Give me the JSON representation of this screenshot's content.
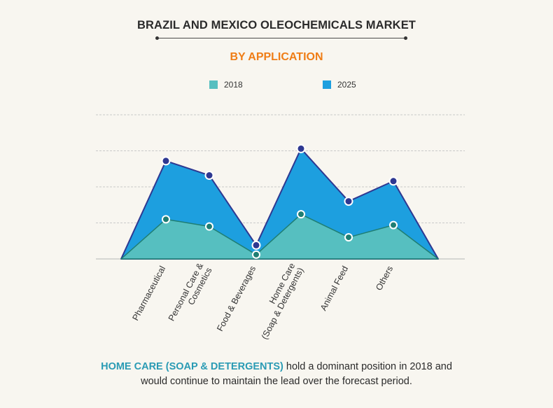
{
  "title": "BRAZIL AND MEXICO OLEOCHEMICALS MARKET",
  "subtitle": "BY APPLICATION",
  "colors": {
    "subtitle": "#ef7d16",
    "s2018_fill": "#56bfc0",
    "s2018_line": "#1f7e73",
    "s2025_fill": "#1d9fdf",
    "s2025_line": "#2e3891",
    "highlight": "#2a9bb4",
    "grid": "#c9c9c9",
    "axis_text": "#333333"
  },
  "chart_data": {
    "type": "area",
    "categories": [
      "Pharmaceutical",
      "Personal Care & Cosmetics",
      "Food & Beverages",
      "Home Care (Soap & Detergents)",
      "Animal Feed",
      "Others"
    ],
    "category_lines": [
      [
        "Pharmaceutical"
      ],
      [
        "Personal Care &",
        "Cosmetics"
      ],
      [
        "Food & Beverages"
      ],
      [
        "Home Care",
        "(Soap & Detergents)"
      ],
      [
        "Animal Feed"
      ],
      [
        "Others"
      ]
    ],
    "series": [
      {
        "name": "2018",
        "values": [
          55,
          45,
          6,
          62,
          30,
          47
        ]
      },
      {
        "name": "2025",
        "values": [
          136,
          116,
          19,
          153,
          80,
          108
        ]
      }
    ],
    "ylim": [
      0,
      200
    ],
    "grid": true,
    "legend_position": "top"
  },
  "caption": {
    "highlight": "HOME CARE (SOAP & DETERGENTS)",
    "line1_rest": " hold a dominant position in 2018 and",
    "line2": "would continue to maintain the lead over the forecast period."
  }
}
